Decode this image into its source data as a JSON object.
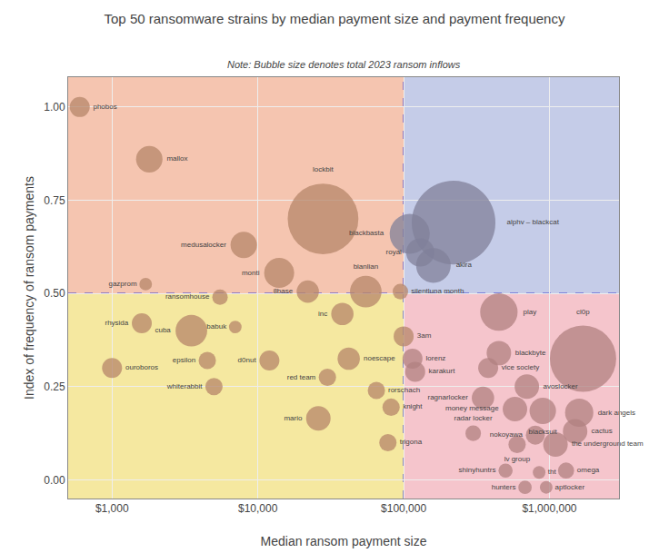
{
  "chart_data": {
    "type": "bubble",
    "title": "Top 50 ransomware strains by median payment size and payment frequency",
    "subtitle": "Note: Bubble size denotes total 2023 ransom inflows",
    "xlabel": "Median ransom payment size",
    "ylabel": "Index of frequency of ransom payments",
    "log": "x",
    "xlim": [
      500,
      3000000
    ],
    "ylim": [
      -0.05,
      1.08
    ],
    "xticks": [
      {
        "value": 1000,
        "label": "$1,000"
      },
      {
        "value": 10000,
        "label": "$10,000"
      },
      {
        "value": 100000,
        "label": "$100,000"
      },
      {
        "value": 1000000,
        "label": "$1,000,000"
      }
    ],
    "yticks": [
      {
        "value": 0.0,
        "label": "0.00"
      },
      0.25,
      {
        "value": 0.5,
        "label": "0.50"
      },
      0.75,
      {
        "value": 1.0,
        "label": "1.00"
      }
    ],
    "grid": true,
    "divider_x": 100000,
    "divider_y": 0.5,
    "divider_color": "#3333cc",
    "line_style": "dashed",
    "quadrant_colors": {
      "top_left": "#f5c5b0",
      "top_right": "#c5cce8",
      "bottom_left": "#f5e8a0",
      "bottom_right": "#f5c5cc"
    },
    "bubbles": [
      {
        "name": "phobos",
        "x": 600,
        "y": 1.0,
        "size": 200,
        "color": "#b5856a"
      },
      {
        "name": "mallox",
        "x": 1800,
        "y": 0.86,
        "size": 350,
        "color": "#b5856a"
      },
      {
        "name": "lockbit",
        "x": 28000,
        "y": 0.7,
        "size": 2500,
        "color": "#b5856a"
      },
      {
        "name": "medusalocker",
        "x": 8000,
        "y": 0.63,
        "size": 350,
        "color": "#b5856a"
      },
      {
        "name": "monti",
        "x": 14000,
        "y": 0.555,
        "size": 450,
        "color": "#b5856a"
      },
      {
        "name": "gazprom",
        "x": 1700,
        "y": 0.525,
        "size": 80,
        "color": "#b5856a"
      },
      {
        "name": "ransomhouse",
        "x": 5500,
        "y": 0.49,
        "size": 120,
        "color": "#b5856a"
      },
      {
        "name": "8base",
        "x": 22000,
        "y": 0.505,
        "size": 250,
        "color": "#b5856a"
      },
      {
        "name": "bianlian",
        "x": 55000,
        "y": 0.505,
        "size": 500,
        "color": "#b5856a"
      },
      {
        "name": "alphv – blackcat",
        "x": 220000,
        "y": 0.69,
        "size": 3500,
        "color": "#808099"
      },
      {
        "name": "blackbasta",
        "x": 110000,
        "y": 0.66,
        "size": 800,
        "color": "#808099"
      },
      {
        "name": "royal",
        "x": 130000,
        "y": 0.61,
        "size": 400,
        "color": "#808099"
      },
      {
        "name": "akira",
        "x": 160000,
        "y": 0.575,
        "size": 600,
        "color": "#808099"
      },
      {
        "name": "silentluna month",
        "x": 95000,
        "y": 0.505,
        "size": 120,
        "color": "#b5856a"
      },
      {
        "name": "rhysida",
        "x": 1600,
        "y": 0.42,
        "size": 200,
        "color": "#b5856a"
      },
      {
        "name": "cuba",
        "x": 3500,
        "y": 0.4,
        "size": 500,
        "color": "#b5856a"
      },
      {
        "name": "babuk",
        "x": 7000,
        "y": 0.41,
        "size": 80,
        "color": "#b5856a"
      },
      {
        "name": "inc",
        "x": 38000,
        "y": 0.445,
        "size": 250,
        "color": "#b5856a"
      },
      {
        "name": "ouroboros",
        "x": 1000,
        "y": 0.3,
        "size": 200,
        "color": "#b5856a"
      },
      {
        "name": "epsilon",
        "x": 4500,
        "y": 0.32,
        "size": 150,
        "color": "#b5856a"
      },
      {
        "name": "d0nut",
        "x": 12000,
        "y": 0.32,
        "size": 200,
        "color": "#b5856a"
      },
      {
        "name": "noescape",
        "x": 42000,
        "y": 0.325,
        "size": 250,
        "color": "#b5856a"
      },
      {
        "name": "whiterabbit",
        "x": 5000,
        "y": 0.25,
        "size": 150,
        "color": "#b5856a"
      },
      {
        "name": "red team",
        "x": 30000,
        "y": 0.275,
        "size": 150,
        "color": "#b5856a"
      },
      {
        "name": "rorschach",
        "x": 65000,
        "y": 0.24,
        "size": 150,
        "color": "#b5856a"
      },
      {
        "name": "mario",
        "x": 26000,
        "y": 0.165,
        "size": 300,
        "color": "#b5856a"
      },
      {
        "name": "knight",
        "x": 82000,
        "y": 0.195,
        "size": 150,
        "color": "#b5856a"
      },
      {
        "name": "trigona",
        "x": 78000,
        "y": 0.1,
        "size": 150,
        "color": "#b5856a"
      },
      {
        "name": "3am",
        "x": 100000,
        "y": 0.385,
        "size": 200,
        "color": "#b5856a"
      },
      {
        "name": "lorenz",
        "x": 115000,
        "y": 0.325,
        "size": 200,
        "color": "#b08080"
      },
      {
        "name": "karakurt",
        "x": 120000,
        "y": 0.29,
        "size": 200,
        "color": "#b08080"
      },
      {
        "name": "play",
        "x": 450000,
        "y": 0.45,
        "size": 700,
        "color": "#b08080"
      },
      {
        "name": "blackbyte",
        "x": 450000,
        "y": 0.34,
        "size": 300,
        "color": "#b08080"
      },
      {
        "name": "vice society",
        "x": 380000,
        "y": 0.3,
        "size": 200,
        "color": "#b08080"
      },
      {
        "name": "cl0p",
        "x": 1700000,
        "y": 0.325,
        "size": 2200,
        "color": "#b08080"
      },
      {
        "name": "ragnarlocker",
        "x": 350000,
        "y": 0.22,
        "size": 250,
        "color": "#b08080"
      },
      {
        "name": "avoslocker",
        "x": 700000,
        "y": 0.25,
        "size": 300,
        "color": "#b08080"
      },
      {
        "name": "money message",
        "x": 580000,
        "y": 0.19,
        "size": 300,
        "color": "#b08080"
      },
      {
        "name": "blacksuit",
        "x": 900000,
        "y": 0.185,
        "size": 350,
        "color": "#b08080"
      },
      {
        "name": "dark angels",
        "x": 1600000,
        "y": 0.18,
        "size": 400,
        "color": "#b08080"
      },
      {
        "name": "radar locker",
        "x": 300000,
        "y": 0.125,
        "size": 120,
        "color": "#b08080"
      },
      {
        "name": "nokoyawa",
        "x": 800000,
        "y": 0.12,
        "size": 180,
        "color": "#b08080"
      },
      {
        "name": "cactus",
        "x": 1500000,
        "y": 0.13,
        "size": 300,
        "color": "#b08080"
      },
      {
        "name": "lv group",
        "x": 600000,
        "y": 0.095,
        "size": 150,
        "color": "#b08080"
      },
      {
        "name": "the underground team",
        "x": 1100000,
        "y": 0.095,
        "size": 300,
        "color": "#b08080"
      },
      {
        "name": "shinyhuntrs",
        "x": 500000,
        "y": 0.025,
        "size": 100,
        "color": "#b08080"
      },
      {
        "name": "tht",
        "x": 850000,
        "y": 0.02,
        "size": 80,
        "color": "#b08080"
      },
      {
        "name": "omega",
        "x": 1300000,
        "y": 0.025,
        "size": 130,
        "color": "#b08080"
      },
      {
        "name": "hunters",
        "x": 680000,
        "y": -0.02,
        "size": 90,
        "color": "#b08080"
      },
      {
        "name": "aptlocker",
        "x": 950000,
        "y": -0.02,
        "size": 80,
        "color": "#b08080"
      }
    ]
  }
}
